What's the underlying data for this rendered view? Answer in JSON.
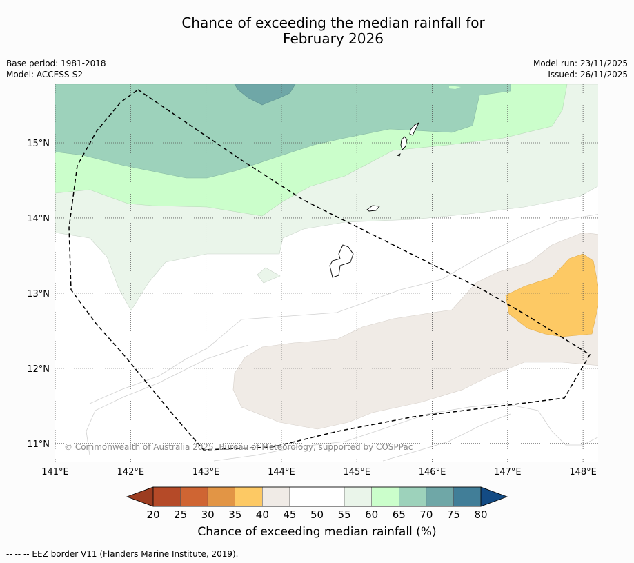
{
  "title_line1": "Chance of exceeding the median rainfall for",
  "title_line2": "February 2026",
  "meta_left": {
    "base_period": "Base period: 1981-2018",
    "model": "Model: ACCESS-S2"
  },
  "meta_right": {
    "model_run": "Model run: 23/11/2025",
    "issued": "Issued: 26/11/2025"
  },
  "copyright": "© Commonwealth of Australia 2025, Bureau of Meteorology, supported by COSPPac",
  "footnote": "--  --  -- EEZ border V11 (Flanders Marine Institute, 2019).",
  "map": {
    "lon_range": [
      141,
      148.2
    ],
    "lat_range": [
      10.75,
      15.78
    ],
    "lon_ticks": [
      141,
      142,
      143,
      144,
      145,
      146,
      147,
      148
    ],
    "lat_ticks": [
      11,
      12,
      13,
      14,
      15
    ],
    "lon_tick_labels": [
      "141°E",
      "142°E",
      "143°E",
      "144°E",
      "145°E",
      "146°E",
      "147°E",
      "148°E"
    ],
    "lat_tick_labels": [
      "11°N",
      "12°N",
      "13°N",
      "14°N",
      "15°N"
    ]
  },
  "colorbar": {
    "label": "Chance of exceeding median rainfall (%)",
    "tick_labels": [
      "20",
      "25",
      "30",
      "35",
      "40",
      "45",
      "50",
      "55",
      "60",
      "65",
      "70",
      "75",
      "80"
    ],
    "under_color": "#9c3c20",
    "over_color": "#134b84",
    "bin_colors": [
      "#b54a28",
      "#cf6533",
      "#e29545",
      "#fdc964",
      "#f0ebe6",
      "#ffffff",
      "#ffffff",
      "#eaf5ea",
      "#cbfecb",
      "#9dd2bb",
      "#6fa7a7",
      "#417e98"
    ]
  },
  "colors": {
    "band_70": "#9dd2bb",
    "band_75": "#6fa7a7",
    "band_65": "#cbfecb",
    "band_60": "#eaf5ea",
    "band_45": "#f0ebe6",
    "band_35": "#fdc964"
  }
}
